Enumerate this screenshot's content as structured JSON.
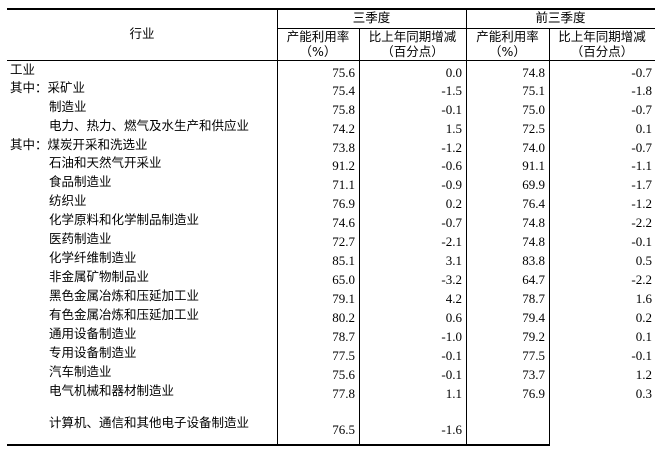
{
  "header": {
    "industry": "行业",
    "q3": "三季度",
    "first3q": "前三季度",
    "rate_line1": "产能利用率",
    "rate_line2": "（%）",
    "change_line1": "比上年同期增减",
    "change_line2": "（百分点）"
  },
  "rows": [
    {
      "label": "工业",
      "indent": 0,
      "q3_rate": "75.6",
      "q3_change": "0.0",
      "ytd_rate": "74.8",
      "ytd_change": "-0.7"
    },
    {
      "label": "其中：采矿业",
      "indent": 0,
      "q3_rate": "75.4",
      "q3_change": "-1.5",
      "ytd_rate": "75.1",
      "ytd_change": "-1.8"
    },
    {
      "label": "制造业",
      "indent": 1,
      "q3_rate": "75.8",
      "q3_change": "-0.1",
      "ytd_rate": "75.0",
      "ytd_change": "-0.7"
    },
    {
      "label": "电力、热力、燃气及水生产和供应业",
      "indent": 1,
      "q3_rate": "74.2",
      "q3_change": "1.5",
      "ytd_rate": "72.5",
      "ytd_change": "0.1"
    },
    {
      "label": "其中：煤炭开采和洗选业",
      "indent": 0,
      "q3_rate": "73.8",
      "q3_change": "-1.2",
      "ytd_rate": "74.0",
      "ytd_change": "-0.7"
    },
    {
      "label": "石油和天然气开采业",
      "indent": 1,
      "q3_rate": "91.2",
      "q3_change": "-0.6",
      "ytd_rate": "91.1",
      "ytd_change": "-1.1"
    },
    {
      "label": "食品制造业",
      "indent": 1,
      "q3_rate": "71.1",
      "q3_change": "-0.9",
      "ytd_rate": "69.9",
      "ytd_change": "-1.7"
    },
    {
      "label": "纺织业",
      "indent": 1,
      "q3_rate": "76.9",
      "q3_change": "0.2",
      "ytd_rate": "76.4",
      "ytd_change": "-1.2"
    },
    {
      "label": "化学原料和化学制品制造业",
      "indent": 1,
      "q3_rate": "74.6",
      "q3_change": "-0.7",
      "ytd_rate": "74.8",
      "ytd_change": "-2.2"
    },
    {
      "label": "医药制造业",
      "indent": 1,
      "q3_rate": "72.7",
      "q3_change": "-2.1",
      "ytd_rate": "74.8",
      "ytd_change": "-0.1"
    },
    {
      "label": "化学纤维制造业",
      "indent": 1,
      "q3_rate": "85.1",
      "q3_change": "3.1",
      "ytd_rate": "83.8",
      "ytd_change": "0.5"
    },
    {
      "label": "非金属矿物制品业",
      "indent": 1,
      "q3_rate": "65.0",
      "q3_change": "-3.2",
      "ytd_rate": "64.7",
      "ytd_change": "-2.2"
    },
    {
      "label": "黑色金属冶炼和压延加工业",
      "indent": 1,
      "q3_rate": "79.1",
      "q3_change": "4.2",
      "ytd_rate": "78.7",
      "ytd_change": "1.6"
    },
    {
      "label": "有色金属冶炼和压延加工业",
      "indent": 1,
      "q3_rate": "80.2",
      "q3_change": "0.6",
      "ytd_rate": "79.4",
      "ytd_change": "0.2"
    },
    {
      "label": "通用设备制造业",
      "indent": 1,
      "q3_rate": "78.7",
      "q3_change": "-1.0",
      "ytd_rate": "79.2",
      "ytd_change": "0.1"
    },
    {
      "label": "专用设备制造业",
      "indent": 1,
      "q3_rate": "77.5",
      "q3_change": "-0.1",
      "ytd_rate": "77.5",
      "ytd_change": "-0.1"
    },
    {
      "label": "汽车制造业",
      "indent": 1,
      "q3_rate": "75.6",
      "q3_change": "-0.1",
      "ytd_rate": "73.7",
      "ytd_change": "1.2"
    },
    {
      "label": "电气机械和器材制造业",
      "indent": 1,
      "q3_rate": "77.8",
      "q3_change": "1.1",
      "ytd_rate": "76.9",
      "ytd_change": "0.3"
    },
    {
      "label": "计算机、通信和其他电子设备制造业",
      "indent": 1,
      "q3_rate": "76.5",
      "q3_change": "-1.6",
      "ytd_rate": "",
      "ytd_change": ""
    }
  ]
}
